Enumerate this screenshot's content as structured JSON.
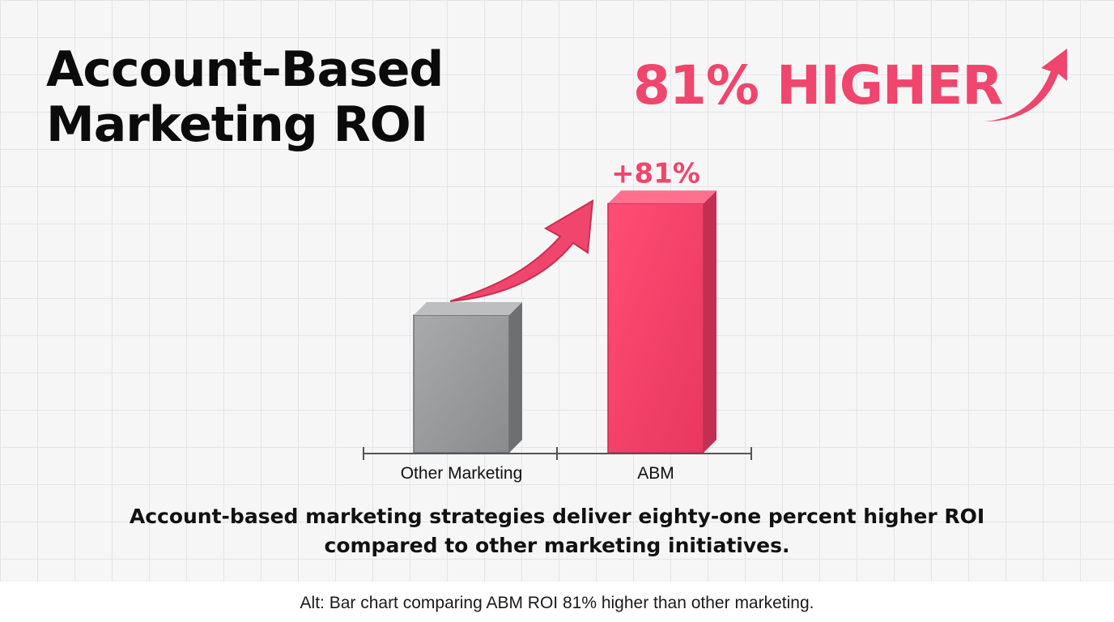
{
  "title": {
    "line1": "Account-Based",
    "line2": "Marketing ROI"
  },
  "headline": {
    "text": "81% HIGHER",
    "icon": "trend-arrow-up-right-icon",
    "color": "#f0456c"
  },
  "chart_data": {
    "type": "bar",
    "categories": [
      "Other Marketing",
      "ABM"
    ],
    "values": [
      100,
      181
    ],
    "colors": [
      "#8f9092",
      "#f0456c"
    ],
    "annotations": [
      {
        "category": "ABM",
        "text": "+81%"
      }
    ],
    "annotation_arrow": "growth-arrow-icon",
    "title": "",
    "xlabel": "",
    "ylabel": "",
    "ylim": [
      0,
      200
    ],
    "grid": true,
    "legend": "none"
  },
  "caption": {
    "line1": "Account-based marketing strategies deliver eighty-one percent higher ROI",
    "line2": "compared to other marketing initiatives."
  },
  "alt_text": "Alt: Bar chart comparing ABM ROI 81% higher than other marketing."
}
